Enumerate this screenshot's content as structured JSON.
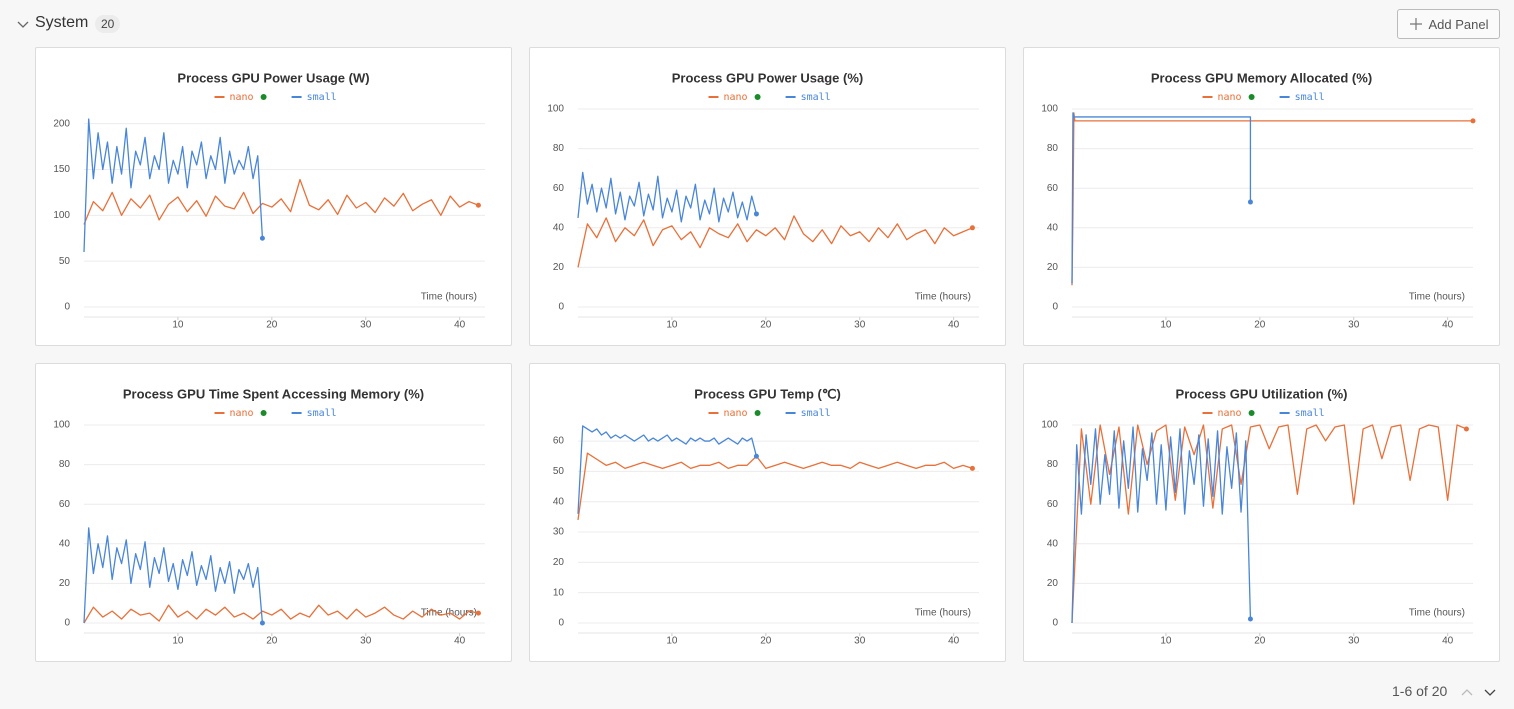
{
  "header": {
    "title": "System",
    "count": 20,
    "button": "Add Panel"
  },
  "footer": {
    "pagination": "1-6 of 20"
  },
  "chart_data": [
    {
      "type": "line",
      "title": "Process GPU Power Usage (W)",
      "xlabel": "Time (hours)",
      "xlim": [
        0,
        42.7
      ],
      "xticks": [
        10,
        20,
        30,
        40
      ],
      "ylim": [
        0,
        216
      ],
      "yticks": [
        0,
        50,
        100,
        150,
        200
      ],
      "grid": true,
      "series": [
        {
          "name": "nano",
          "color": "#e8703a",
          "x": [
            0,
            1,
            2,
            3,
            4,
            5,
            6,
            7,
            8,
            9,
            10,
            11,
            12,
            13,
            14,
            15,
            16,
            17,
            18,
            19,
            20,
            21,
            22,
            23,
            24,
            25,
            26,
            27,
            28,
            29,
            30,
            31,
            32,
            33,
            34,
            35,
            36,
            37,
            38,
            39,
            40,
            41,
            42
          ],
          "values": [
            90,
            115,
            105,
            125,
            100,
            118,
            108,
            122,
            95,
            112,
            120,
            104,
            116,
            99,
            121,
            110,
            107,
            125,
            102,
            113,
            109,
            118,
            104,
            139,
            111,
            106,
            117,
            101,
            122,
            108,
            114,
            103,
            119,
            110,
            124,
            105,
            112,
            117,
            100,
            121,
            109,
            115,
            111
          ]
        },
        {
          "name": "small",
          "color": "#4a86d8",
          "x": [
            0,
            0.5,
            1,
            1.5,
            2,
            2.5,
            3,
            3.5,
            4,
            4.5,
            5,
            5.5,
            6,
            6.5,
            7,
            7.5,
            8,
            8.5,
            9,
            9.5,
            10,
            10.5,
            11,
            11.5,
            12,
            12.5,
            13,
            13.5,
            14,
            14.5,
            15,
            15.5,
            16,
            16.5,
            17,
            17.5,
            18,
            18.5,
            19
          ],
          "values": [
            60,
            205,
            140,
            190,
            150,
            180,
            135,
            175,
            145,
            195,
            130,
            170,
            155,
            185,
            140,
            165,
            150,
            190,
            135,
            160,
            145,
            175,
            130,
            170,
            155,
            180,
            140,
            165,
            150,
            185,
            135,
            170,
            145,
            160,
            150,
            175,
            140,
            165,
            75
          ]
        }
      ]
    },
    {
      "type": "line",
      "title": "Process GPU Power Usage (%)",
      "xlabel": "Time (hours)",
      "xlim": [
        0,
        42.7
      ],
      "xticks": [
        10,
        20,
        30,
        40
      ],
      "ylim": [
        0,
        100
      ],
      "yticks": [
        0,
        20,
        40,
        60,
        80,
        100
      ],
      "grid": true,
      "series": [
        {
          "name": "nano",
          "color": "#e8703a",
          "x": [
            0,
            1,
            2,
            3,
            4,
            5,
            6,
            7,
            8,
            9,
            10,
            11,
            12,
            13,
            14,
            15,
            16,
            17,
            18,
            19,
            20,
            21,
            22,
            23,
            24,
            25,
            26,
            27,
            28,
            29,
            30,
            31,
            32,
            33,
            34,
            35,
            36,
            37,
            38,
            39,
            40,
            41,
            42
          ],
          "values": [
            20,
            42,
            35,
            45,
            33,
            40,
            36,
            44,
            31,
            39,
            41,
            34,
            38,
            30,
            40,
            37,
            35,
            42,
            33,
            39,
            36,
            40,
            34,
            46,
            37,
            33,
            39,
            32,
            41,
            36,
            38,
            33,
            40,
            35,
            42,
            34,
            37,
            39,
            32,
            40,
            36,
            38,
            40
          ]
        },
        {
          "name": "small",
          "color": "#4a86d8",
          "x": [
            0,
            0.5,
            1,
            1.5,
            2,
            2.5,
            3,
            3.5,
            4,
            4.5,
            5,
            5.5,
            6,
            6.5,
            7,
            7.5,
            8,
            8.5,
            9,
            9.5,
            10,
            10.5,
            11,
            11.5,
            12,
            12.5,
            13,
            13.5,
            14,
            14.5,
            15,
            15.5,
            16,
            16.5,
            17,
            17.5,
            18,
            18.5,
            19
          ],
          "values": [
            45,
            68,
            52,
            62,
            48,
            60,
            50,
            65,
            47,
            58,
            44,
            56,
            51,
            63,
            46,
            57,
            49,
            66,
            45,
            55,
            48,
            59,
            43,
            56,
            50,
            62,
            44,
            54,
            47,
            60,
            43,
            55,
            48,
            58,
            45,
            53,
            44,
            56,
            47
          ]
        }
      ]
    },
    {
      "type": "line",
      "title": "Process GPU Memory Allocated (%)",
      "xlabel": "Time (hours)",
      "xlim": [
        0,
        42.7
      ],
      "xticks": [
        10,
        20,
        30,
        40
      ],
      "ylim": [
        0,
        100
      ],
      "yticks": [
        0,
        20,
        40,
        60,
        80,
        100
      ],
      "grid": true,
      "series": [
        {
          "name": "nano",
          "color": "#e8703a",
          "x": [
            0,
            0.1,
            0.2,
            0.3,
            42.7
          ],
          "values": [
            11,
            47,
            98,
            94,
            94
          ]
        },
        {
          "name": "small",
          "color": "#4a86d8",
          "x": [
            0,
            0.1,
            0.2,
            19,
            19
          ],
          "values": [
            12,
            98,
            96,
            96,
            53
          ]
        }
      ]
    },
    {
      "type": "line",
      "title": "Process GPU Time Spent Accessing Memory (%)",
      "xlabel": "Time (hours)",
      "xlim": [
        0,
        42.7
      ],
      "xticks": [
        10,
        20,
        30,
        40
      ],
      "ylim": [
        0,
        100
      ],
      "yticks": [
        0,
        20,
        40,
        60,
        80,
        100
      ],
      "grid": true,
      "series": [
        {
          "name": "nano",
          "color": "#e8703a",
          "x": [
            0,
            1,
            2,
            3,
            4,
            5,
            6,
            7,
            8,
            9,
            10,
            11,
            12,
            13,
            14,
            15,
            16,
            17,
            18,
            19,
            20,
            21,
            22,
            23,
            24,
            25,
            26,
            27,
            28,
            29,
            30,
            31,
            32,
            33,
            34,
            35,
            36,
            37,
            38,
            39,
            40,
            41,
            42
          ],
          "values": [
            0,
            8,
            3,
            6,
            2,
            7,
            4,
            5,
            1,
            9,
            3,
            6,
            2,
            7,
            4,
            8,
            3,
            5,
            2,
            6,
            4,
            7,
            2,
            5,
            3,
            9,
            4,
            6,
            2,
            7,
            3,
            5,
            8,
            4,
            2,
            6,
            3,
            7,
            4,
            5,
            2,
            6,
            5
          ]
        },
        {
          "name": "small",
          "color": "#4a86d8",
          "x": [
            0,
            0.5,
            1,
            1.5,
            2,
            2.5,
            3,
            3.5,
            4,
            4.5,
            5,
            5.5,
            6,
            6.5,
            7,
            7.5,
            8,
            8.5,
            9,
            9.5,
            10,
            10.5,
            11,
            11.5,
            12,
            12.5,
            13,
            13.5,
            14,
            14.5,
            15,
            15.5,
            16,
            16.5,
            17,
            17.5,
            18,
            18.5,
            19
          ],
          "values": [
            0,
            48,
            25,
            40,
            28,
            44,
            22,
            38,
            30,
            42,
            20,
            35,
            27,
            41,
            18,
            33,
            25,
            38,
            21,
            30,
            17,
            32,
            24,
            36,
            19,
            29,
            22,
            34,
            16,
            28,
            20,
            31,
            15,
            27,
            22,
            30,
            18,
            28,
            0
          ]
        }
      ]
    },
    {
      "type": "line",
      "title": "Process GPU Temp (℃)",
      "xlabel": "Time (hours)",
      "xlim": [
        0,
        42.7
      ],
      "xticks": [
        10,
        20,
        30,
        40
      ],
      "ylim": [
        0,
        65.3
      ],
      "yticks": [
        0,
        10,
        20,
        30,
        40,
        50,
        60
      ],
      "grid": true,
      "series": [
        {
          "name": "nano",
          "color": "#e8703a",
          "x": [
            0,
            1,
            2,
            3,
            4,
            5,
            6,
            7,
            8,
            9,
            10,
            11,
            12,
            13,
            14,
            15,
            16,
            17,
            18,
            19,
            20,
            21,
            22,
            23,
            24,
            25,
            26,
            27,
            28,
            29,
            30,
            31,
            32,
            33,
            34,
            35,
            36,
            37,
            38,
            39,
            40,
            41,
            42
          ],
          "values": [
            34,
            56,
            54,
            52,
            53,
            51,
            52,
            53,
            52,
            51,
            52,
            53,
            51,
            52,
            52,
            53,
            51,
            52,
            52,
            55,
            51,
            52,
            53,
            52,
            51,
            52,
            53,
            52,
            52,
            51,
            53,
            52,
            51,
            52,
            53,
            52,
            51,
            52,
            52,
            53,
            51,
            52,
            51
          ]
        },
        {
          "name": "small",
          "color": "#4a86d8",
          "x": [
            0,
            0.5,
            1,
            1.5,
            2,
            2.5,
            3,
            3.5,
            4,
            4.5,
            5,
            5.5,
            6,
            6.5,
            7,
            7.5,
            8,
            8.5,
            9,
            9.5,
            10,
            10.5,
            11,
            11.5,
            12,
            12.5,
            13,
            13.5,
            14,
            14.5,
            15,
            15.5,
            16,
            16.5,
            17,
            17.5,
            18,
            18.5,
            19
          ],
          "values": [
            36,
            65,
            64,
            63,
            64,
            62,
            63,
            61,
            62,
            61,
            62,
            61,
            60,
            61,
            62,
            60,
            61,
            60,
            61,
            62,
            60,
            61,
            60,
            59,
            61,
            60,
            61,
            60,
            60,
            61,
            59,
            60,
            61,
            60,
            59,
            61,
            60,
            61,
            55
          ]
        }
      ]
    },
    {
      "type": "line",
      "title": "Process GPU Utilization (%)",
      "xlabel": "Time (hours)",
      "xlim": [
        0,
        42.7
      ],
      "xticks": [
        10,
        20,
        30,
        40
      ],
      "ylim": [
        0,
        100
      ],
      "yticks": [
        0,
        20,
        40,
        60,
        80,
        100
      ],
      "grid": true,
      "series": [
        {
          "name": "nano",
          "color": "#e8703a",
          "x": [
            0,
            1,
            2,
            3,
            4,
            5,
            6,
            7,
            8,
            9,
            10,
            11,
            12,
            13,
            14,
            15,
            16,
            17,
            18,
            19,
            20,
            21,
            22,
            23,
            24,
            25,
            26,
            27,
            28,
            29,
            30,
            31,
            32,
            33,
            34,
            35,
            36,
            37,
            38,
            39,
            40,
            41,
            42
          ],
          "values": [
            0,
            98,
            60,
            100,
            75,
            99,
            55,
            100,
            80,
            97,
            100,
            62,
            99,
            85,
            100,
            58,
            98,
            100,
            70,
            99,
            100,
            88,
            99,
            100,
            65,
            98,
            100,
            92,
            99,
            100,
            60,
            98,
            100,
            83,
            99,
            100,
            72,
            98,
            100,
            99,
            62,
            100,
            98
          ]
        },
        {
          "name": "small",
          "color": "#4a86d8",
          "x": [
            0,
            0.5,
            1,
            1.5,
            2,
            2.5,
            3,
            3.5,
            4,
            4.5,
            5,
            5.5,
            6,
            6.5,
            7,
            7.5,
            8,
            8.5,
            9,
            9.5,
            10,
            10.5,
            11,
            11.5,
            12,
            12.5,
            13,
            13.5,
            14,
            14.5,
            15,
            15.5,
            16,
            16.5,
            17,
            17.5,
            18,
            18.5,
            19
          ],
          "values": [
            0,
            90,
            55,
            95,
            70,
            98,
            60,
            85,
            65,
            97,
            58,
            92,
            68,
            99,
            56,
            88,
            72,
            96,
            60,
            90,
            57,
            94,
            66,
            98,
            55,
            87,
            70,
            95,
            59,
            93,
            64,
            97,
            55,
            89,
            68,
            96,
            56,
            92,
            2
          ]
        }
      ]
    }
  ]
}
